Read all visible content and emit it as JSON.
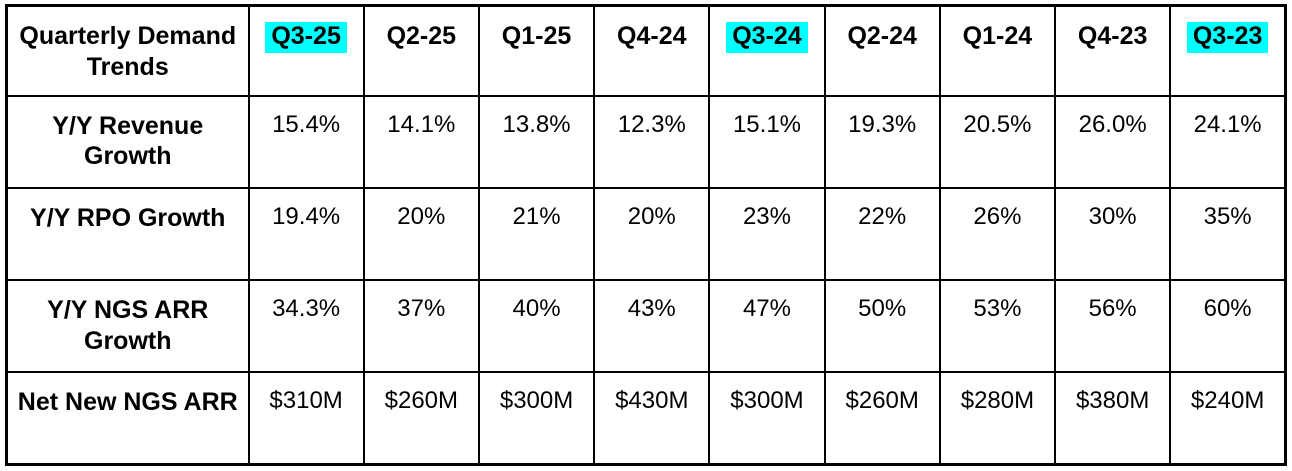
{
  "table": {
    "corner_label": "Quarterly Demand Trends",
    "highlight_color": "#00FFFF",
    "border_color": "#000000",
    "text_color": "#000000",
    "columns": [
      {
        "label": "Q3-25",
        "highlighted": true
      },
      {
        "label": "Q2-25",
        "highlighted": false
      },
      {
        "label": "Q1-25",
        "highlighted": false
      },
      {
        "label": "Q4-24",
        "highlighted": false
      },
      {
        "label": "Q3-24",
        "highlighted": true
      },
      {
        "label": "Q2-24",
        "highlighted": false
      },
      {
        "label": "Q1-24",
        "highlighted": false
      },
      {
        "label": "Q4-23",
        "highlighted": false
      },
      {
        "label": "Q3-23",
        "highlighted": true
      }
    ],
    "rows": [
      {
        "label": "Y/Y Revenue Growth",
        "values": [
          "15.4%",
          "14.1%",
          "13.8%",
          "12.3%",
          "15.1%",
          "19.3%",
          "20.5%",
          "26.0%",
          "24.1%"
        ]
      },
      {
        "label": "Y/Y RPO Growth",
        "values": [
          "19.4%",
          "20%",
          "21%",
          "20%",
          "23%",
          "22%",
          "26%",
          "30%",
          "35%"
        ]
      },
      {
        "label": "Y/Y NGS ARR Growth",
        "values": [
          "34.3%",
          "37%",
          "40%",
          "43%",
          "47%",
          "50%",
          "53%",
          "56%",
          "60%"
        ]
      },
      {
        "label": "Net New NGS ARR",
        "values": [
          "$310M",
          "$260M",
          "$300M",
          "$430M",
          "$300M",
          "$260M",
          "$280M",
          "$380M",
          "$240M"
        ]
      }
    ]
  },
  "chart_data": {
    "type": "table",
    "title": "Quarterly Demand Trends",
    "categories": [
      "Q3-25",
      "Q2-25",
      "Q1-25",
      "Q4-24",
      "Q3-24",
      "Q2-24",
      "Q1-24",
      "Q4-23",
      "Q3-23"
    ],
    "highlighted_categories": [
      "Q3-25",
      "Q3-24",
      "Q3-23"
    ],
    "series": [
      {
        "name": "Y/Y Revenue Growth",
        "unit": "%",
        "values": [
          15.4,
          14.1,
          13.8,
          12.3,
          15.1,
          19.3,
          20.5,
          26.0,
          24.1
        ]
      },
      {
        "name": "Y/Y RPO Growth",
        "unit": "%",
        "values": [
          19.4,
          20,
          21,
          20,
          23,
          22,
          26,
          30,
          35
        ]
      },
      {
        "name": "Y/Y NGS ARR Growth",
        "unit": "%",
        "values": [
          34.3,
          37,
          40,
          43,
          47,
          50,
          53,
          56,
          60
        ]
      },
      {
        "name": "Net New NGS ARR",
        "unit": "$M",
        "values": [
          310,
          260,
          300,
          430,
          300,
          260,
          280,
          380,
          240
        ]
      }
    ],
    "layout": {
      "grid": true,
      "header_highlight_color": "#00FFFF"
    }
  }
}
